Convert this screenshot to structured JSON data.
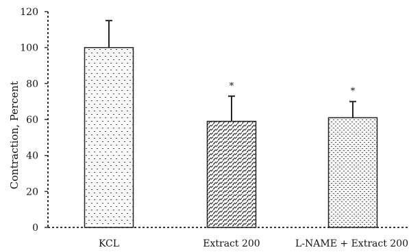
{
  "chart_data": {
    "type": "bar",
    "title": "",
    "xlabel": "",
    "ylabel": "Contraction, Percent",
    "ylim": [
      0,
      120
    ],
    "yticks": [
      0,
      20,
      40,
      60,
      80,
      100,
      120
    ],
    "categories": [
      "KCL",
      "Extract 200",
      "L-NAME + Extract 200"
    ],
    "values": [
      100,
      59,
      61
    ],
    "error_upper": [
      15,
      14,
      9
    ],
    "significance": [
      "",
      "*",
      "*"
    ],
    "bar_patterns": [
      "dotted",
      "diagonal-dash",
      "dense-dotted"
    ],
    "grid": false
  }
}
